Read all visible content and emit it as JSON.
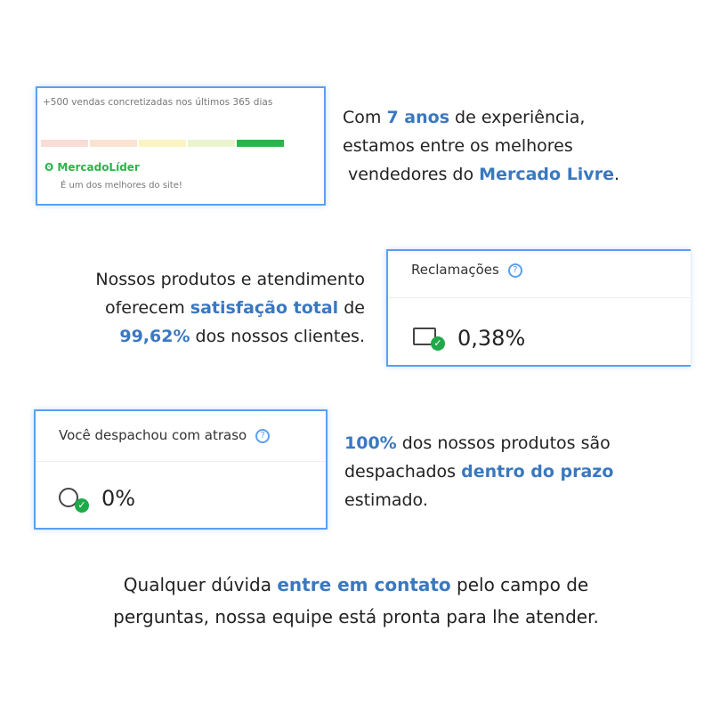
{
  "seller_card": {
    "sales_text": "+500 vendas concretizadas nos últimos 365 dias",
    "badge": "MercadoLíder",
    "badge_sub": "É um dos melhores do site!",
    "reputation_colors": [
      "#f8dcd6",
      "#fae3d2",
      "#fbf3c2",
      "#eaf5cf",
      "#2db34a"
    ],
    "reputation_level": 5
  },
  "para1": {
    "a": "Com ",
    "b": "7 anos",
    "c": " de experiência,",
    "d": "estamos entre os melhores",
    "e": "vendedores do ",
    "f": "Mercado Livre",
    "g": "."
  },
  "claims_card": {
    "title": "Reclamações",
    "value": "0,38%"
  },
  "para2": {
    "a": "Nossos produtos e atendimento",
    "b": "oferecem ",
    "c": "satisfação total",
    "d": " de",
    "e": "99,62%",
    "f": " dos nossos clientes."
  },
  "delay_card": {
    "title": "Você despachou com atraso",
    "value": "0%"
  },
  "para3": {
    "a": "100%",
    "b": " dos nossos produtos são",
    "c": "despachados ",
    "d": "dentro do prazo",
    "e": "estimado."
  },
  "footer": {
    "a": "Qualquer dúvida ",
    "b": "entre em contato",
    "c": " pelo campo de",
    "d": "perguntas, nossa equipe está pronta para lhe atender."
  }
}
